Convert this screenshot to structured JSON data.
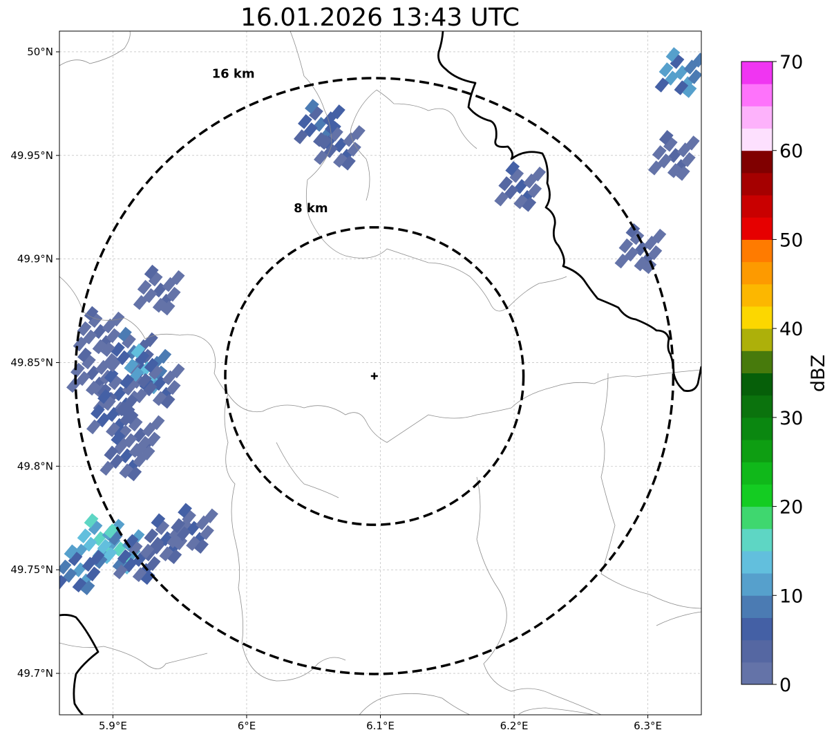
{
  "title": "16.01.2026 13:43 UTC",
  "map": {
    "lon_range": [
      5.86,
      6.34
    ],
    "lat_range": [
      49.68,
      50.01
    ],
    "grid": true,
    "x_ticks": [
      {
        "value": 5.9,
        "label": "5.9°E"
      },
      {
        "value": 6.0,
        "label": "6°E"
      },
      {
        "value": 6.1,
        "label": "6.1°E"
      },
      {
        "value": 6.2,
        "label": "6.2°E"
      },
      {
        "value": 6.3,
        "label": "6.3°E"
      }
    ],
    "y_ticks": [
      {
        "value": 50.0,
        "label": "50°N"
      },
      {
        "value": 49.95,
        "label": "49.95°N"
      },
      {
        "value": 49.9,
        "label": "49.9°N"
      },
      {
        "value": 49.85,
        "label": "49.85°N"
      },
      {
        "value": 49.8,
        "label": "49.8°N"
      },
      {
        "value": 49.75,
        "label": "49.75°N"
      },
      {
        "value": 49.7,
        "label": "49.7°N"
      }
    ],
    "center": {
      "lon": 6.0955,
      "lat": 49.8435
    },
    "rings": [
      {
        "label": "8 km",
        "lon_min": 5.984,
        "lon_max": 6.207,
        "lat_min": 49.7717,
        "lat_max": 49.9153,
        "label_lon": 6.048,
        "label_lat": 49.9225
      },
      {
        "label": "16 km",
        "lon_min": 5.872,
        "lon_max": 6.319,
        "lat_min": 49.6997,
        "lat_max": 49.9873,
        "label_lon": 5.99,
        "label_lat": 49.9875
      }
    ],
    "colors": {
      "thick_border": "#000000",
      "thin_border": "#8c8c8c",
      "grid": "#b0b0b0"
    }
  },
  "colorbar": {
    "label": "dBZ",
    "vmin": 0,
    "vmax": 70,
    "ticks": [
      0,
      10,
      20,
      30,
      40,
      50,
      60,
      70
    ],
    "colors": [
      "#6473a8",
      "#5567a2",
      "#4460a5",
      "#4b7bb3",
      "#56a0cc",
      "#62bfdd",
      "#5ed6c4",
      "#3fd76f",
      "#14cc22",
      "#10b81a",
      "#0e9e12",
      "#0a8710",
      "#0b730d",
      "#065f09",
      "#477a0c",
      "#adb00a",
      "#fcd700",
      "#fcb700",
      "#fd9a00",
      "#ff7b00",
      "#e60000",
      "#c90000",
      "#a50000",
      "#800000",
      "#fde0fe",
      "#fdb2fb",
      "#fe73fb",
      "#f035f2"
    ]
  },
  "reflectivity_dbz": [
    {
      "lon": 5.885,
      "lat": 49.845,
      "dbz": 3
    },
    {
      "lon": 5.905,
      "lat": 49.835,
      "dbz": 6
    },
    {
      "lon": 5.915,
      "lat": 49.855,
      "dbz": 8
    },
    {
      "lon": 5.925,
      "lat": 49.847,
      "dbz": 13
    },
    {
      "lon": 5.935,
      "lat": 49.84,
      "dbz": 5
    },
    {
      "lon": 5.9,
      "lat": 49.825,
      "dbz": 7
    },
    {
      "lon": 5.92,
      "lat": 49.815,
      "dbz": 4
    },
    {
      "lon": 5.89,
      "lat": 49.865,
      "dbz": 4
    },
    {
      "lon": 5.935,
      "lat": 49.885,
      "dbz": 3
    },
    {
      "lon": 5.91,
      "lat": 49.805,
      "dbz": 5
    },
    {
      "lon": 5.89,
      "lat": 49.765,
      "dbz": 16
    },
    {
      "lon": 5.905,
      "lat": 49.76,
      "dbz": 15
    },
    {
      "lon": 5.875,
      "lat": 49.75,
      "dbz": 11
    },
    {
      "lon": 5.92,
      "lat": 49.755,
      "dbz": 7
    },
    {
      "lon": 5.94,
      "lat": 49.765,
      "dbz": 6
    },
    {
      "lon": 5.96,
      "lat": 49.77,
      "dbz": 5
    },
    {
      "lon": 6.055,
      "lat": 49.965,
      "dbz": 9
    },
    {
      "lon": 6.07,
      "lat": 49.955,
      "dbz": 5
    },
    {
      "lon": 6.205,
      "lat": 49.935,
      "dbz": 5
    },
    {
      "lon": 6.325,
      "lat": 49.99,
      "dbz": 12
    },
    {
      "lon": 6.32,
      "lat": 49.95,
      "dbz": 4
    },
    {
      "lon": 6.295,
      "lat": 49.905,
      "dbz": 3
    }
  ]
}
